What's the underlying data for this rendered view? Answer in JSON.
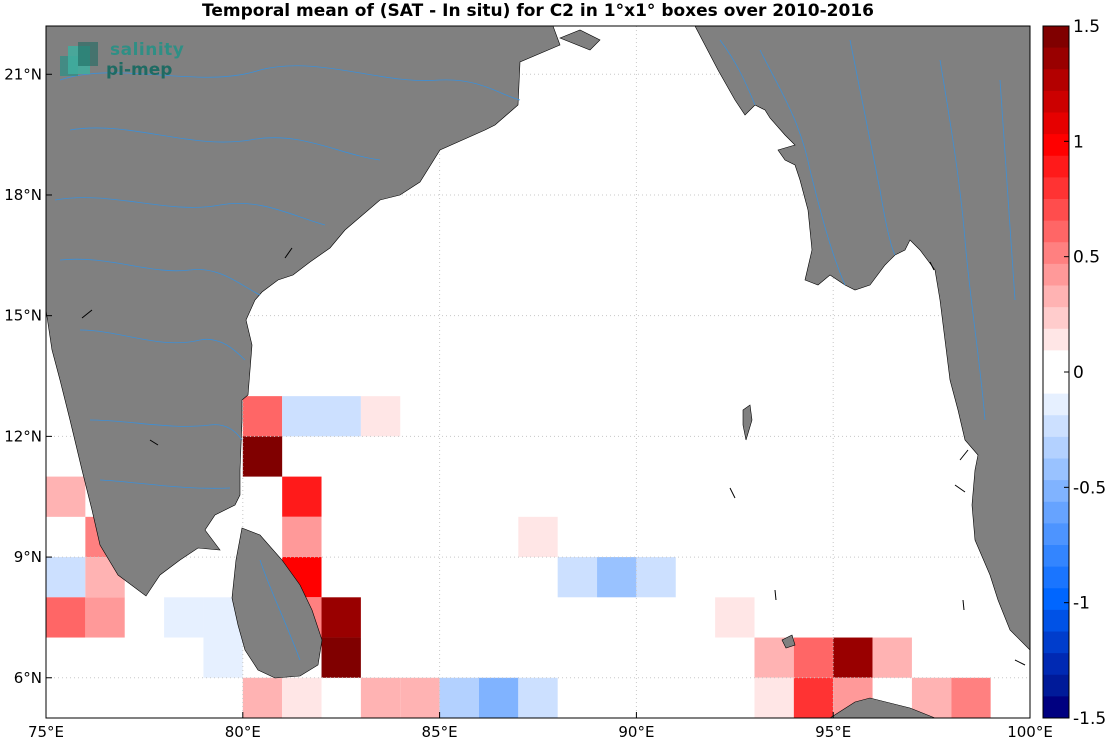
{
  "title": "Temporal mean of (SAT - In situ) for C2 in 1°x1° boxes over 2010-2016",
  "logo": {
    "line1": "salinity",
    "line2": "pi-mep"
  },
  "map": {
    "lon_range": [
      75,
      100
    ],
    "lat_range": [
      5,
      22.2
    ],
    "x_ticks": [
      {
        "value": 75,
        "label": "75°E"
      },
      {
        "value": 80,
        "label": "80°E"
      },
      {
        "value": 85,
        "label": "85°E"
      },
      {
        "value": 90,
        "label": "90°E"
      },
      {
        "value": 95,
        "label": "95°E"
      },
      {
        "value": 100,
        "label": "100°E"
      }
    ],
    "y_ticks": [
      {
        "value": 6,
        "label": "6°N"
      },
      {
        "value": 9,
        "label": "9°N"
      },
      {
        "value": 12,
        "label": "12°N"
      },
      {
        "value": 15,
        "label": "15°N"
      },
      {
        "value": 18,
        "label": "18°N"
      },
      {
        "value": 21,
        "label": "21°N"
      }
    ],
    "land_color": "#808080",
    "river_color": "#3d8fd6",
    "grid": true
  },
  "colorbar": {
    "range": [
      -1.5,
      1.5
    ],
    "ticks": [
      {
        "value": 1.5,
        "label": "1.5"
      },
      {
        "value": 1,
        "label": "1"
      },
      {
        "value": 0.5,
        "label": "0.5"
      },
      {
        "value": 0,
        "label": "0"
      },
      {
        "value": -0.5,
        "label": "-0.5"
      },
      {
        "value": -1,
        "label": "-1"
      },
      {
        "value": -1.5,
        "label": "-1.5"
      }
    ],
    "colors_top_to_bottom": [
      "#800000",
      "#990000",
      "#b30000",
      "#cc0000",
      "#e60000",
      "#ff0000",
      "#ff1a1a",
      "#ff3333",
      "#ff4d4d",
      "#ff6666",
      "#ff8080",
      "#ff9999",
      "#ffb3b3",
      "#ffcccc",
      "#ffe6e6",
      "#ffffff",
      "#ffffff",
      "#e6f0ff",
      "#cce0ff",
      "#b3d1ff",
      "#99c2ff",
      "#80b3ff",
      "#66a3ff",
      "#4d94ff",
      "#3385ff",
      "#1a75ff",
      "#0066ff",
      "#0052e6",
      "#003dcc",
      "#0029b3",
      "#001a99",
      "#000080"
    ]
  },
  "chart_data": {
    "type": "heatmap",
    "title": "Temporal mean of (SAT - In situ) for C2 in 1°x1° boxes over 2010-2016",
    "xlabel": "",
    "ylabel": "",
    "xlim": [
      75,
      100
    ],
    "ylim": [
      5,
      22.2
    ],
    "cell_size_deg": 1,
    "colorbar_range": [
      -1.5,
      1.5
    ],
    "cells": [
      {
        "lon": 80,
        "lat": 12,
        "value": 0.6
      },
      {
        "lon": 81,
        "lat": 12,
        "value": -0.2
      },
      {
        "lon": 82,
        "lat": 12,
        "value": -0.2
      },
      {
        "lon": 83,
        "lat": 12,
        "value": 0.15
      },
      {
        "lon": 80,
        "lat": 11,
        "value": 1.5
      },
      {
        "lon": 75,
        "lat": 10,
        "value": 0.3
      },
      {
        "lon": 81,
        "lat": 10,
        "value": 0.9
      },
      {
        "lon": 76,
        "lat": 9,
        "value": 0.55
      },
      {
        "lon": 81,
        "lat": 9,
        "value": 0.45
      },
      {
        "lon": 87,
        "lat": 9,
        "value": 0.15
      },
      {
        "lon": 75,
        "lat": 8,
        "value": -0.2
      },
      {
        "lon": 76,
        "lat": 8,
        "value": 0.35
      },
      {
        "lon": 81,
        "lat": 8,
        "value": 1.0
      },
      {
        "lon": 88,
        "lat": 8,
        "value": -0.2
      },
      {
        "lon": 89,
        "lat": 8,
        "value": -0.45
      },
      {
        "lon": 90,
        "lat": 8,
        "value": -0.2
      },
      {
        "lon": 75,
        "lat": 7,
        "value": 0.6
      },
      {
        "lon": 76,
        "lat": 7,
        "value": 0.45
      },
      {
        "lon": 78,
        "lat": 7,
        "value": -0.1
      },
      {
        "lon": 79,
        "lat": 7,
        "value": -0.1
      },
      {
        "lon": 81,
        "lat": 7,
        "value": 0.5
      },
      {
        "lon": 82,
        "lat": 7,
        "value": 1.4
      },
      {
        "lon": 92,
        "lat": 7,
        "value": 0.15
      },
      {
        "lon": 79,
        "lat": 6,
        "value": -0.1
      },
      {
        "lon": 82,
        "lat": 6,
        "value": 1.45
      },
      {
        "lon": 93,
        "lat": 6,
        "value": 0.35
      },
      {
        "lon": 94,
        "lat": 6,
        "value": 0.65
      },
      {
        "lon": 95,
        "lat": 6,
        "value": 1.35
      },
      {
        "lon": 96,
        "lat": 6,
        "value": 0.35
      },
      {
        "lon": 80,
        "lat": 5,
        "value": 0.35
      },
      {
        "lon": 81,
        "lat": 5,
        "value": 0.15
      },
      {
        "lon": 83,
        "lat": 5,
        "value": 0.3
      },
      {
        "lon": 84,
        "lat": 5,
        "value": 0.3
      },
      {
        "lon": 85,
        "lat": 5,
        "value": -0.3
      },
      {
        "lon": 86,
        "lat": 5,
        "value": -0.5
      },
      {
        "lon": 87,
        "lat": 5,
        "value": -0.2
      },
      {
        "lon": 93,
        "lat": 5,
        "value": 0.15
      },
      {
        "lon": 94,
        "lat": 5,
        "value": 0.8
      },
      {
        "lon": 95,
        "lat": 5,
        "value": 0.4
      },
      {
        "lon": 97,
        "lat": 5,
        "value": 0.35
      },
      {
        "lon": 98,
        "lat": 5,
        "value": 0.55
      }
    ]
  }
}
